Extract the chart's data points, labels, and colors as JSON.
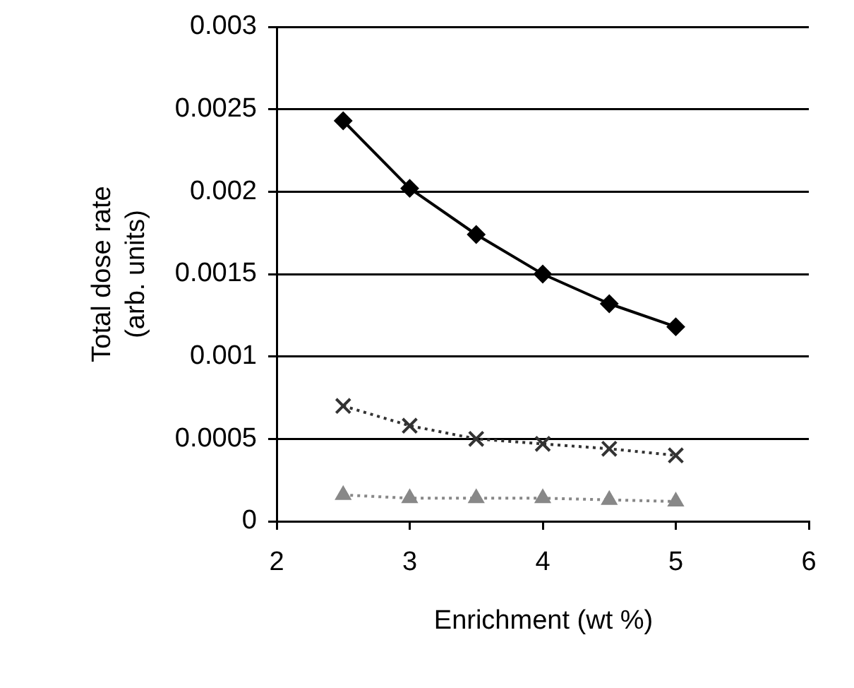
{
  "chart_data": {
    "type": "line",
    "xlabel": "Enrichment (wt %)",
    "ylabel": "Total dose rate (arb. units)",
    "x": [
      2.5,
      3,
      3.5,
      4,
      4.5,
      5
    ],
    "series": [
      {
        "color": "#000000",
        "marker": "diamond",
        "line_style": "solid",
        "values": [
          0.00243,
          0.00202,
          0.00174,
          0.0015,
          0.00132,
          0.00118
        ]
      },
      {
        "color": "#333333",
        "marker": "cross",
        "line_style": "dotted",
        "values": [
          0.0007,
          0.00058,
          0.0005,
          0.00047,
          0.00044,
          0.0004
        ]
      },
      {
        "color": "#888888",
        "marker": "triangle",
        "line_style": "dotted",
        "values": [
          0.00016,
          0.00014,
          0.00014,
          0.00014,
          0.00013,
          0.00012
        ]
      }
    ],
    "xlim": [
      2,
      6
    ],
    "xticks": [
      2,
      3,
      4,
      5,
      6
    ],
    "ylim": [
      0,
      0.003
    ],
    "yticks": [
      0,
      0.0005,
      0.001,
      0.0015,
      0.002,
      0.0025,
      0.003
    ],
    "grid": "y",
    "legend": false
  }
}
